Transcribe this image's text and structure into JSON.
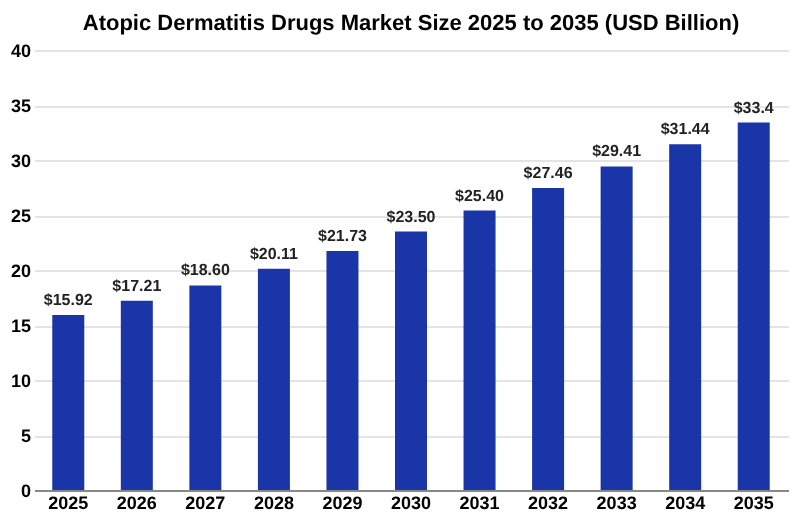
{
  "chart_data": {
    "type": "bar",
    "title": "Atopic Dermatitis Drugs Market Size 2025 to 2035 (USD Billion)",
    "categories": [
      "2025",
      "2026",
      "2027",
      "2028",
      "2029",
      "2030",
      "2031",
      "2032",
      "2033",
      "2034",
      "2035"
    ],
    "values": [
      15.92,
      17.21,
      18.6,
      20.11,
      21.73,
      23.5,
      25.4,
      27.46,
      29.41,
      31.44,
      33.4
    ],
    "value_labels": [
      "$15.92",
      "$17.21",
      "$18.60",
      "$20.11",
      "$21.73",
      "$23.50",
      "$25.40",
      "$27.46",
      "$29.41",
      "$31.44",
      "$33.4"
    ],
    "color": "#1a35a8",
    "ylim": [
      0,
      40
    ],
    "yticks": [
      0,
      5,
      10,
      15,
      20,
      25,
      30,
      35,
      40
    ],
    "grid": "y"
  }
}
